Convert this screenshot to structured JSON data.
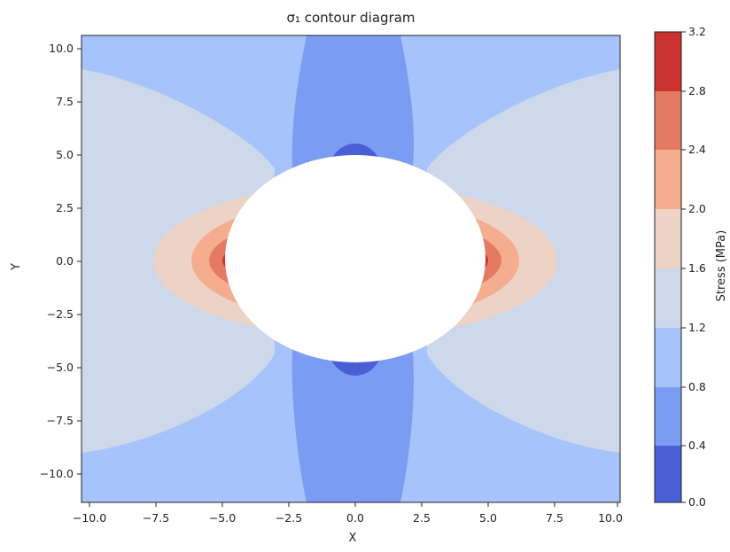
{
  "chart_data": {
    "type": "heatmap",
    "subtype": "filled-contour",
    "title": "σ₁ contour diagram",
    "xlabel": "X",
    "ylabel": "Y",
    "colorbar_label": "Stress (MPa)",
    "xlim": [
      -10.4,
      10.4
    ],
    "ylim": [
      -11.6,
      10.9
    ],
    "xticks": [
      "−10.0",
      "−7.5",
      "−5.0",
      "−2.5",
      "0.0",
      "2.5",
      "5.0",
      "7.5",
      "10.0"
    ],
    "yticks": [
      "10.0",
      "7.5",
      "5.0",
      "2.5",
      "0.0",
      "−2.5",
      "−5.0",
      "−7.5",
      "−10.0"
    ],
    "levels": [
      0.0,
      0.4,
      0.8,
      1.2,
      1.6,
      2.0,
      2.4,
      2.8,
      3.2
    ],
    "level_labels": [
      "0.0",
      "0.4",
      "0.8",
      "1.2",
      "1.6",
      "2.0",
      "2.4",
      "2.8",
      "3.2"
    ],
    "colormap": "coolwarm",
    "level_colors": [
      "#4a5fd6",
      "#7a9cf2",
      "#a6c3fb",
      "#cdd8ea",
      "#ecd3c5",
      "#f5ad90",
      "#e57a62",
      "#c9332f"
    ],
    "hole": {
      "shape": "ellipse",
      "cx": 0,
      "cy": 0,
      "rx": 4.9,
      "ry": 3.9
    },
    "grid": false
  }
}
